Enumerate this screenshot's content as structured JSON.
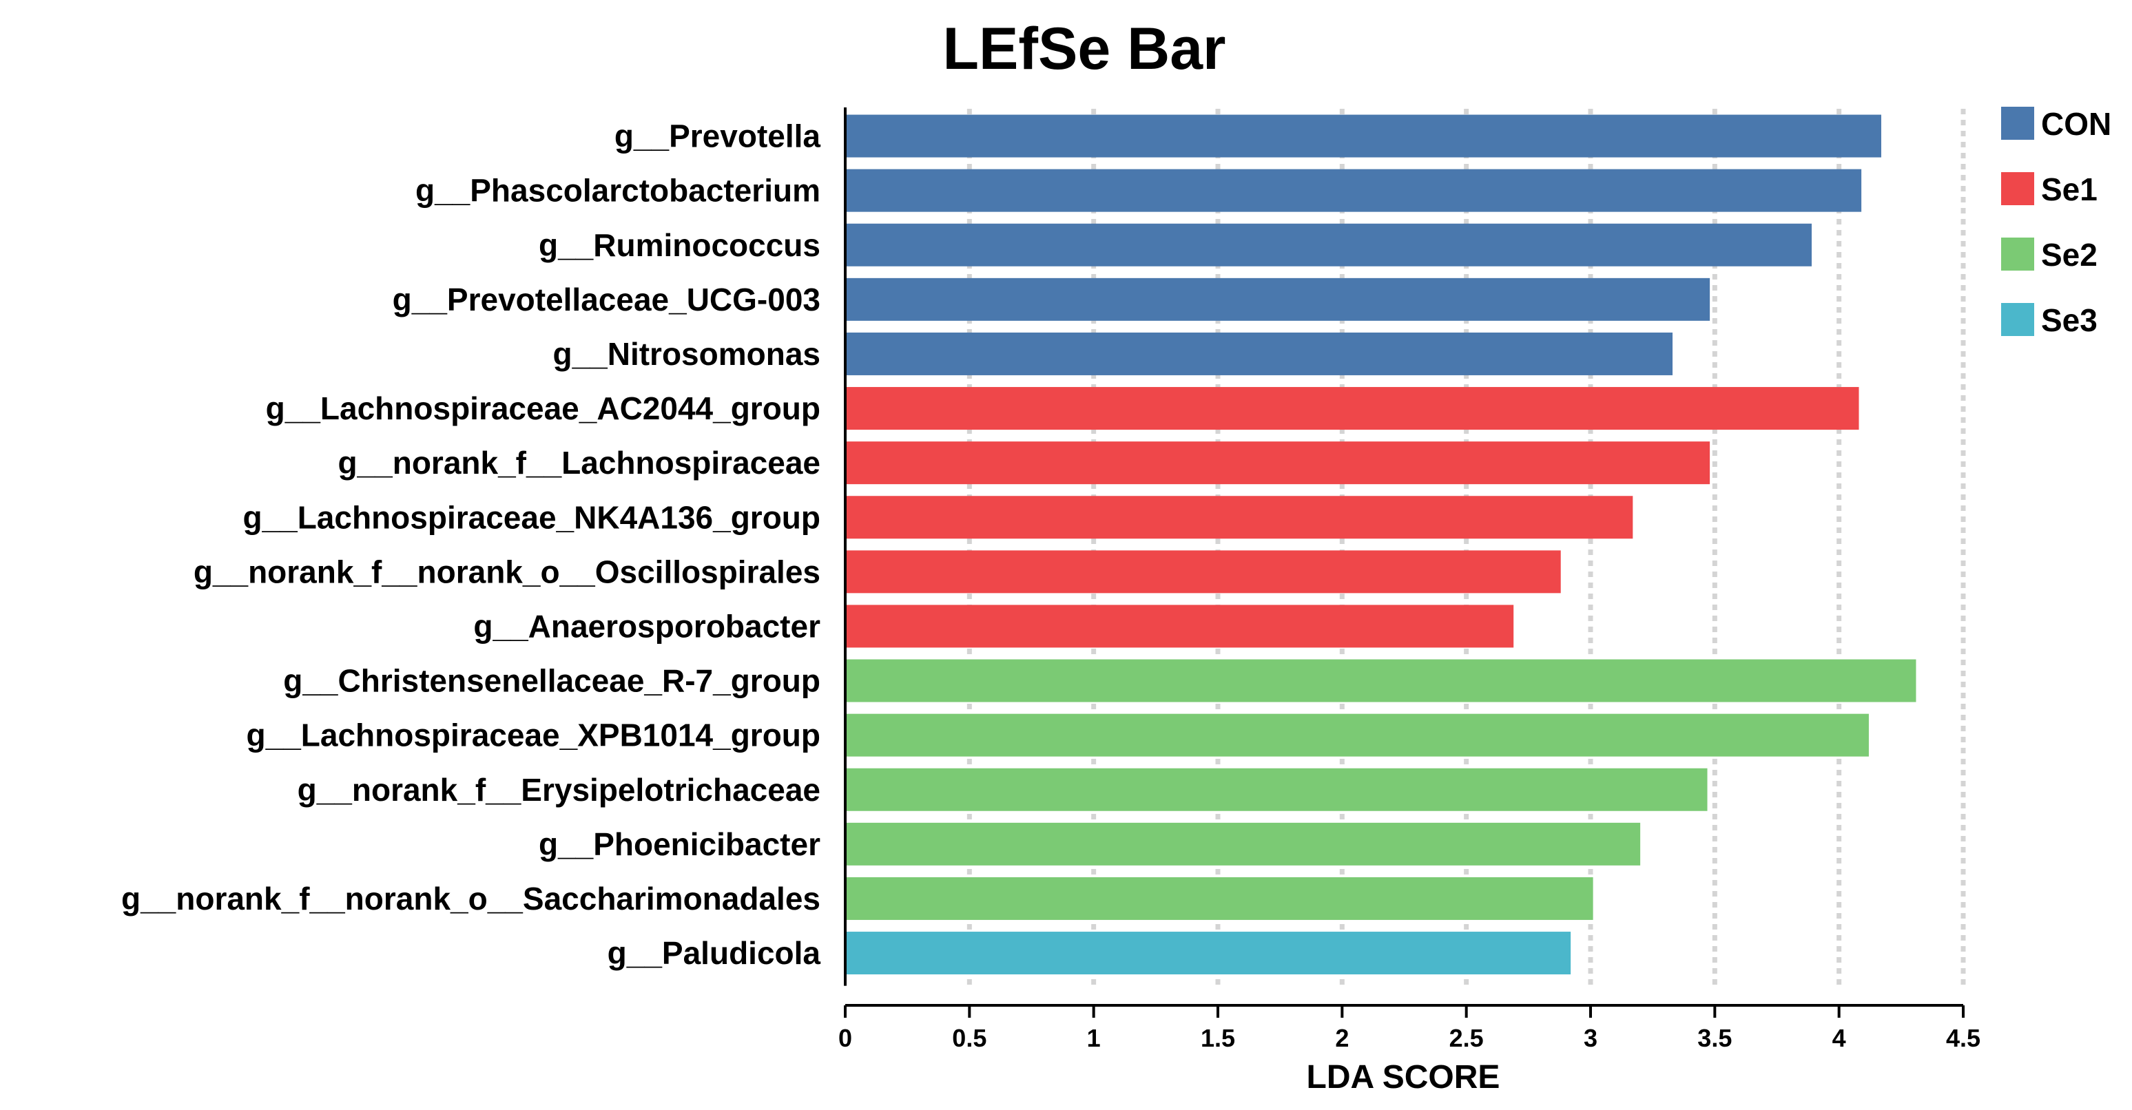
{
  "chart_data": {
    "type": "bar",
    "orientation": "horizontal",
    "title": "LEfSe Bar",
    "xlabel": "LDA SCORE",
    "ylabel": "",
    "xlim": [
      0,
      4.5
    ],
    "xticks": [
      0,
      0.5,
      1,
      1.5,
      2,
      2.5,
      3,
      3.5,
      4,
      4.5
    ],
    "xtick_labels": [
      "0",
      "0.5",
      "1",
      "1.5",
      "2",
      "2.5",
      "3",
      "3.5",
      "4",
      "4.5"
    ],
    "grid": "vertical dotted",
    "legend_position": "top-right",
    "groups": [
      {
        "name": "CON",
        "color": "#4a78ad"
      },
      {
        "name": "Se1",
        "color": "#ef474a"
      },
      {
        "name": "Se2",
        "color": "#7bca74"
      },
      {
        "name": "Se3",
        "color": "#4bb7cb"
      }
    ],
    "bars": [
      {
        "label": "g__Prevotella",
        "value": 4.17,
        "group": "CON"
      },
      {
        "label": "g__Phascolarctobacterium",
        "value": 4.09,
        "group": "CON"
      },
      {
        "label": "g__Ruminococcus",
        "value": 3.89,
        "group": "CON"
      },
      {
        "label": "g__Prevotellaceae_UCG-003",
        "value": 3.48,
        "group": "CON"
      },
      {
        "label": "g__Nitrosomonas",
        "value": 3.33,
        "group": "CON"
      },
      {
        "label": "g__Lachnospiraceae_AC2044_group",
        "value": 4.08,
        "group": "Se1"
      },
      {
        "label": "g__norank_f__Lachnospiraceae",
        "value": 3.48,
        "group": "Se1"
      },
      {
        "label": "g__Lachnospiraceae_NK4A136_group",
        "value": 3.17,
        "group": "Se1"
      },
      {
        "label": "g__norank_f__norank_o__Oscillospirales",
        "value": 2.88,
        "group": "Se1"
      },
      {
        "label": "g__Anaerosporobacter",
        "value": 2.69,
        "group": "Se1"
      },
      {
        "label": "g__Christensenellaceae_R-7_group",
        "value": 4.31,
        "group": "Se2"
      },
      {
        "label": "g__Lachnospiraceae_XPB1014_group",
        "value": 4.12,
        "group": "Se2"
      },
      {
        "label": "g__norank_f__Erysipelotrichaceae",
        "value": 3.47,
        "group": "Se2"
      },
      {
        "label": "g__Phoenicibacter",
        "value": 3.2,
        "group": "Se2"
      },
      {
        "label": "g__norank_f__norank_o__Saccharimonadales",
        "value": 3.01,
        "group": "Se2"
      },
      {
        "label": "g__Paludicola",
        "value": 2.92,
        "group": "Se3"
      }
    ]
  }
}
